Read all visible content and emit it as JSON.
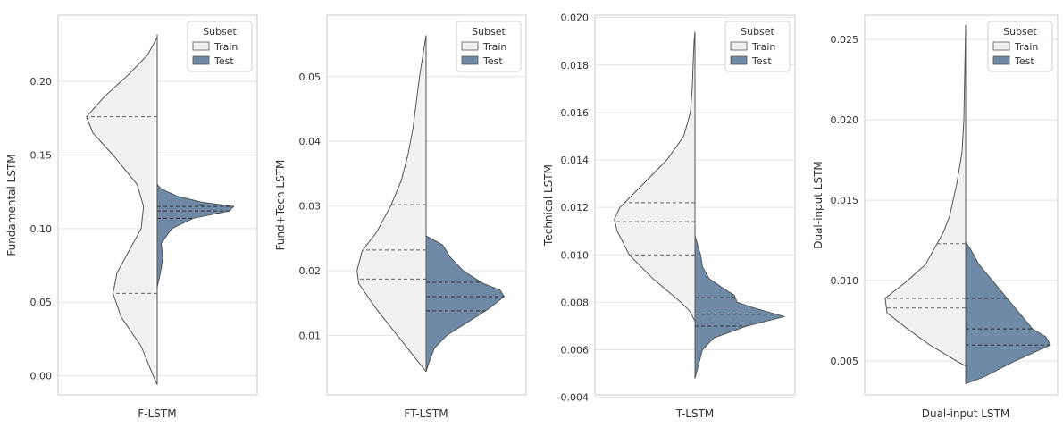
{
  "colors": {
    "train": "#f1f1f1",
    "test": "#6f8aa6",
    "outline": "#555555",
    "grid": "#e3e3e3",
    "frame": "#cccccc",
    "text": "#333333"
  },
  "legend": {
    "title": "Subset",
    "entries": [
      "Train",
      "Test"
    ]
  },
  "chart_data": [
    {
      "type": "violin",
      "split": true,
      "xlabel": "F-LSTM",
      "ylabel": "Fundamental LSTM",
      "ylim": [
        -0.013,
        0.245
      ],
      "yticks": [
        0.0,
        0.05,
        0.1,
        0.15,
        0.2
      ],
      "ytick_labels": [
        "0.00",
        "0.05",
        "0.10",
        "0.15",
        "0.20"
      ],
      "series": [
        {
          "name": "Train",
          "side": "left",
          "range": [
            -0.006,
            0.232
          ],
          "quartiles": [
            0.056,
            0.176
          ],
          "density": [
            [
              -0.006,
              0.0
            ],
            [
              0.0,
              0.05
            ],
            [
              0.02,
              0.2
            ],
            [
              0.04,
              0.45
            ],
            [
              0.056,
              0.55
            ],
            [
              0.07,
              0.5
            ],
            [
              0.085,
              0.35
            ],
            [
              0.1,
              0.2
            ],
            [
              0.115,
              0.17
            ],
            [
              0.13,
              0.25
            ],
            [
              0.15,
              0.55
            ],
            [
              0.165,
              0.8
            ],
            [
              0.176,
              0.88
            ],
            [
              0.19,
              0.65
            ],
            [
              0.205,
              0.35
            ],
            [
              0.218,
              0.12
            ],
            [
              0.23,
              0.0
            ],
            [
              0.232,
              0.0
            ]
          ]
        },
        {
          "name": "Test",
          "side": "right",
          "range": [
            0.06,
            0.13
          ],
          "quartiles": [
            0.107,
            0.112,
            0.115
          ],
          "density": [
            [
              0.06,
              0.0
            ],
            [
              0.07,
              0.04
            ],
            [
              0.08,
              0.07
            ],
            [
              0.085,
              0.06
            ],
            [
              0.09,
              0.05
            ],
            [
              0.1,
              0.18
            ],
            [
              0.107,
              0.45
            ],
            [
              0.112,
              0.9
            ],
            [
              0.115,
              0.95
            ],
            [
              0.118,
              0.55
            ],
            [
              0.122,
              0.25
            ],
            [
              0.127,
              0.05
            ],
            [
              0.13,
              0.0
            ]
          ]
        }
      ]
    },
    {
      "type": "violin",
      "split": true,
      "xlabel": "FT-LSTM",
      "ylabel": "Fund+Tech LSTM",
      "ylim": [
        0.0008,
        0.0595
      ],
      "yticks": [
        0.01,
        0.02,
        0.03,
        0.04,
        0.05
      ],
      "ytick_labels": [
        "0.01",
        "0.02",
        "0.03",
        "0.04",
        "0.05"
      ],
      "series": [
        {
          "name": "Train",
          "side": "left",
          "range": [
            0.0044,
            0.0564
          ],
          "quartiles": [
            0.0187,
            0.0232,
            0.0302
          ],
          "density": [
            [
              0.0044,
              0.0
            ],
            [
              0.006,
              0.1
            ],
            [
              0.01,
              0.35
            ],
            [
              0.014,
              0.6
            ],
            [
              0.018,
              0.82
            ],
            [
              0.02,
              0.84
            ],
            [
              0.023,
              0.78
            ],
            [
              0.026,
              0.6
            ],
            [
              0.03,
              0.43
            ],
            [
              0.034,
              0.3
            ],
            [
              0.038,
              0.22
            ],
            [
              0.042,
              0.16
            ],
            [
              0.046,
              0.12
            ],
            [
              0.05,
              0.08
            ],
            [
              0.054,
              0.03
            ],
            [
              0.0564,
              0.0
            ]
          ]
        },
        {
          "name": "Test",
          "side": "right",
          "range": [
            0.0044,
            0.0254
          ],
          "quartiles": [
            0.0138,
            0.016,
            0.0182
          ],
          "density": [
            [
              0.0044,
              0.0
            ],
            [
              0.006,
              0.04
            ],
            [
              0.008,
              0.1
            ],
            [
              0.01,
              0.25
            ],
            [
              0.012,
              0.5
            ],
            [
              0.014,
              0.75
            ],
            [
              0.016,
              0.95
            ],
            [
              0.017,
              0.9
            ],
            [
              0.018,
              0.7
            ],
            [
              0.02,
              0.45
            ],
            [
              0.022,
              0.3
            ],
            [
              0.024,
              0.2
            ],
            [
              0.0254,
              0.0
            ]
          ]
        }
      ]
    },
    {
      "type": "violin",
      "split": true,
      "xlabel": "T-LSTM",
      "ylabel": "Technical LSTM",
      "ylim": [
        0.0041,
        0.0201
      ],
      "yticks": [
        0.004,
        0.006,
        0.008,
        0.01,
        0.012,
        0.014,
        0.016,
        0.018,
        0.02
      ],
      "ytick_labels": [
        "0.004",
        "0.006",
        "0.008",
        "0.010",
        "0.012",
        "0.014",
        "0.016",
        "0.018",
        "0.020"
      ],
      "series": [
        {
          "name": "Train",
          "side": "left",
          "range": [
            0.0072,
            0.0194
          ],
          "quartiles": [
            0.01,
            0.0114,
            0.0122
          ],
          "density": [
            [
              0.0072,
              0.0
            ],
            [
              0.0076,
              0.05
            ],
            [
              0.008,
              0.15
            ],
            [
              0.009,
              0.45
            ],
            [
              0.01,
              0.7
            ],
            [
              0.011,
              0.83
            ],
            [
              0.0115,
              0.86
            ],
            [
              0.012,
              0.8
            ],
            [
              0.013,
              0.55
            ],
            [
              0.014,
              0.3
            ],
            [
              0.015,
              0.12
            ],
            [
              0.016,
              0.05
            ],
            [
              0.017,
              0.03
            ],
            [
              0.018,
              0.02
            ],
            [
              0.019,
              0.01
            ],
            [
              0.0194,
              0.0
            ]
          ]
        },
        {
          "name": "Test",
          "side": "right",
          "range": [
            0.0048,
            0.0108
          ],
          "quartiles": [
            0.007,
            0.0075,
            0.0082
          ],
          "density": [
            [
              0.0048,
              0.0
            ],
            [
              0.006,
              0.08
            ],
            [
              0.0065,
              0.2
            ],
            [
              0.007,
              0.55
            ],
            [
              0.0074,
              0.95
            ],
            [
              0.0078,
              0.6
            ],
            [
              0.008,
              0.45
            ],
            [
              0.0083,
              0.42
            ],
            [
              0.0086,
              0.3
            ],
            [
              0.009,
              0.15
            ],
            [
              0.0095,
              0.08
            ],
            [
              0.01,
              0.06
            ],
            [
              0.0108,
              0.0
            ]
          ]
        }
      ]
    },
    {
      "type": "violin",
      "split": true,
      "xlabel": "Dual-input LSTM",
      "ylabel": "Dual-input LSTM",
      "ylim": [
        0.0029,
        0.0265
      ],
      "yticks": [
        0.005,
        0.01,
        0.015,
        0.02,
        0.025
      ],
      "ytick_labels": [
        "0.005",
        "0.010",
        "0.015",
        "0.020",
        "0.025"
      ],
      "series": [
        {
          "name": "Train",
          "side": "left",
          "range": [
            0.0047,
            0.0259
          ],
          "quartiles": [
            0.0083,
            0.0089,
            0.0123
          ],
          "density": [
            [
              0.0047,
              0.0
            ],
            [
              0.005,
              0.1
            ],
            [
              0.006,
              0.4
            ],
            [
              0.007,
              0.65
            ],
            [
              0.008,
              0.88
            ],
            [
              0.0089,
              0.9
            ],
            [
              0.01,
              0.65
            ],
            [
              0.011,
              0.45
            ],
            [
              0.012,
              0.35
            ],
            [
              0.013,
              0.25
            ],
            [
              0.014,
              0.18
            ],
            [
              0.016,
              0.1
            ],
            [
              0.018,
              0.04
            ],
            [
              0.02,
              0.02
            ],
            [
              0.023,
              0.01
            ],
            [
              0.0259,
              0.0
            ]
          ]
        },
        {
          "name": "Test",
          "side": "right",
          "range": [
            0.0036,
            0.0124
          ],
          "quartiles": [
            0.006,
            0.007,
            0.0089
          ],
          "density": [
            [
              0.0036,
              0.0
            ],
            [
              0.004,
              0.2
            ],
            [
              0.005,
              0.55
            ],
            [
              0.006,
              0.95
            ],
            [
              0.0065,
              0.9
            ],
            [
              0.007,
              0.75
            ],
            [
              0.008,
              0.6
            ],
            [
              0.009,
              0.45
            ],
            [
              0.01,
              0.3
            ],
            [
              0.011,
              0.15
            ],
            [
              0.012,
              0.05
            ],
            [
              0.0124,
              0.0
            ]
          ]
        }
      ]
    }
  ]
}
